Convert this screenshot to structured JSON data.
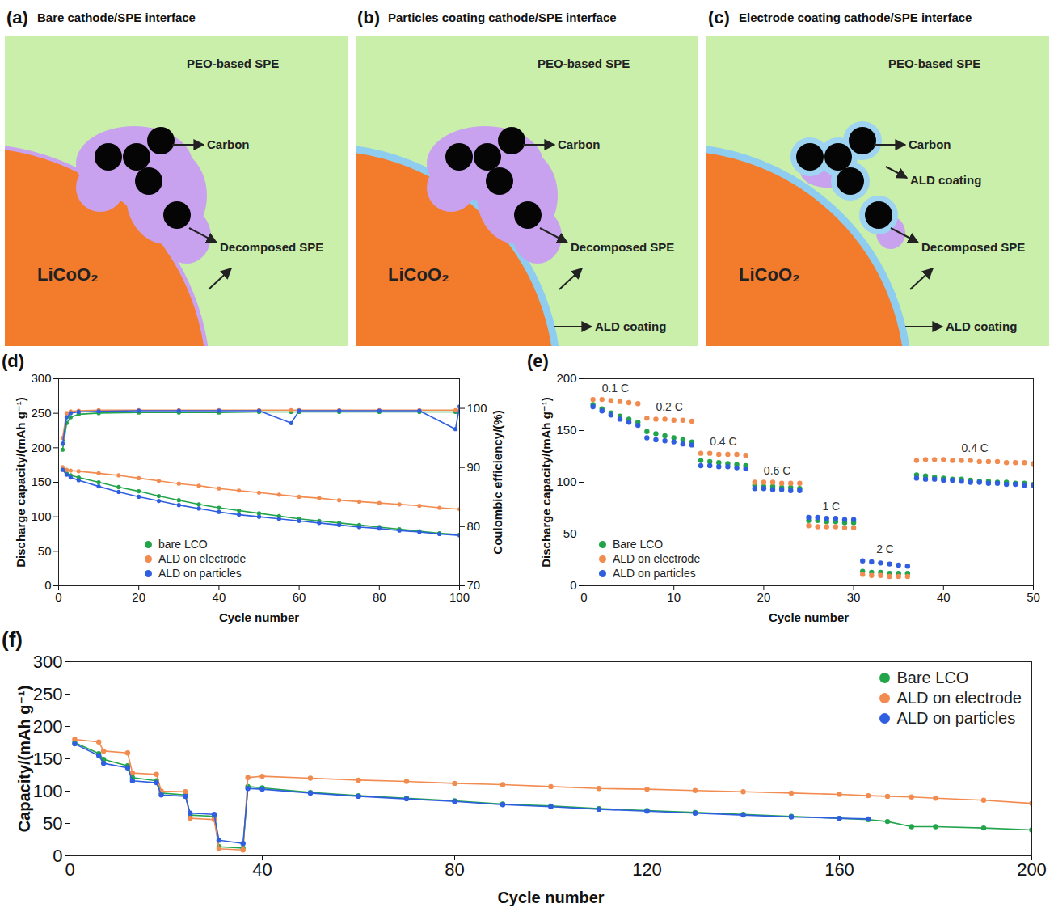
{
  "diagrams": [
    {
      "panel_label": "(a)",
      "title": "Bare cathode/SPE interface",
      "labels": {
        "matrix": "PEO-based SPE",
        "carbon": "Carbon",
        "decomposed": "Decomposed SPE",
        "particle": "LiCoO₂"
      }
    },
    {
      "panel_label": "(b)",
      "title": "Particles coating cathode/SPE interface",
      "labels": {
        "matrix": "PEO-based SPE",
        "carbon": "Carbon",
        "decomposed": "Decomposed SPE",
        "particle": "LiCoO₂",
        "particle_coating": "ALD coating"
      }
    },
    {
      "panel_label": "(c)",
      "title": "Electrode coating cathode/SPE interface",
      "labels": {
        "matrix": "PEO-based SPE",
        "carbon": "Carbon",
        "carbon_coating": "ALD coating",
        "decomposed": "Decomposed SPE",
        "particle": "LiCoO₂",
        "particle_coating": "ALD coating"
      }
    }
  ],
  "chart_data": [
    {
      "panel_label": "(d)",
      "type": "line",
      "marker": "circle",
      "x_label": "Cycle number",
      "y_label": "Discharge capacity/(mAh g⁻¹)",
      "y2_label": "Coulombic efficiency/(%)",
      "x": [
        1,
        2,
        3,
        5,
        10,
        15,
        20,
        25,
        30,
        35,
        40,
        45,
        50,
        55,
        60,
        65,
        70,
        75,
        80,
        85,
        90,
        95,
        100
      ],
      "series": [
        {
          "name": "bare LCO",
          "color": "#22a54a",
          "values": [
            170,
            163,
            160,
            157,
            150,
            143,
            137,
            130,
            124,
            118,
            113,
            109,
            105,
            101,
            97,
            94,
            91,
            88,
            85,
            82,
            79,
            76,
            74
          ]
        },
        {
          "name": "ALD on electrode",
          "color": "#f28b50",
          "values": [
            172,
            168,
            167,
            166,
            163,
            160,
            156,
            152,
            148,
            145,
            141,
            138,
            135,
            132,
            129,
            127,
            124,
            122,
            120,
            118,
            116,
            113,
            111
          ]
        },
        {
          "name": "ALD on particles",
          "color": "#2f5fe0",
          "values": [
            168,
            161,
            157,
            153,
            144,
            136,
            129,
            123,
            117,
            112,
            107,
            103,
            100,
            97,
            94,
            91,
            88,
            85,
            83,
            80,
            78,
            75,
            73
          ]
        },
        {
          "axis": "y2",
          "color": "#22a54a",
          "x": [
            1,
            2,
            3,
            5,
            10,
            20,
            30,
            40,
            50,
            58,
            60,
            70,
            80,
            90,
            99,
            100
          ],
          "values": [
            93,
            97.5,
            98.5,
            99,
            99.2,
            99.3,
            99.3,
            99.3,
            99.4,
            99.4,
            99.4,
            99.4,
            99.4,
            99.4,
            99.4,
            99.4
          ]
        },
        {
          "axis": "y2",
          "color": "#f28b50",
          "x": [
            1,
            2,
            3,
            5,
            10,
            20,
            30,
            40,
            50,
            58,
            60,
            70,
            80,
            90,
            99,
            100
          ],
          "values": [
            95,
            99.2,
            99.5,
            99.6,
            99.7,
            99.7,
            99.7,
            99.7,
            99.7,
            99.7,
            99.7,
            99.7,
            99.7,
            99.7,
            99.7,
            99.7
          ]
        },
        {
          "axis": "y2",
          "color": "#2f5fe0",
          "x": [
            1,
            2,
            3,
            5,
            10,
            20,
            30,
            40,
            50,
            58,
            60,
            70,
            80,
            90,
            99,
            100
          ],
          "values": [
            94,
            98.5,
            99.2,
            99.4,
            99.5,
            99.6,
            99.6,
            99.6,
            99.6,
            97.5,
            99.6,
            99.6,
            99.6,
            99.6,
            96.5,
            100.3
          ]
        }
      ],
      "xlim": [
        0,
        100
      ],
      "xticks": [
        0,
        20,
        40,
        60,
        80,
        100
      ],
      "ylim": [
        0,
        300
      ],
      "yticks": [
        0,
        50,
        100,
        150,
        200,
        250,
        300
      ],
      "y2lim": [
        70,
        105
      ],
      "y2ticks": [
        70,
        80,
        90,
        100
      ],
      "legend": "lower left"
    },
    {
      "panel_label": "(e)",
      "type": "scatter",
      "marker": "circle",
      "x_label": "Cycle number",
      "y_label": "Discharge capacity/(mAh g⁻¹)",
      "x": [
        1,
        2,
        3,
        4,
        5,
        6,
        7,
        8,
        9,
        10,
        11,
        12,
        13,
        14,
        15,
        16,
        17,
        18,
        19,
        20,
        21,
        22,
        23,
        24,
        25,
        26,
        27,
        28,
        29,
        30,
        31,
        32,
        33,
        34,
        35,
        36,
        37,
        38,
        39,
        40,
        41,
        42,
        43,
        44,
        45,
        46,
        47,
        48,
        49,
        50
      ],
      "series": [
        {
          "name": "Bare LCO",
          "color": "#22a54a",
          "values": [
            175,
            171,
            167,
            164,
            161,
            158,
            149,
            147,
            145,
            143,
            141,
            139,
            121,
            120,
            119,
            118,
            117,
            116,
            97,
            96,
            96,
            95,
            95,
            94,
            63,
            63,
            62,
            62,
            61,
            61,
            14,
            13,
            13,
            12,
            12,
            12,
            107,
            106,
            105,
            104,
            103,
            103,
            102,
            101,
            101,
            100,
            100,
            99,
            99,
            98
          ]
        },
        {
          "name": "ALD on electrode",
          "color": "#f28b50",
          "values": [
            180,
            180,
            179,
            178,
            177,
            176,
            162,
            161,
            161,
            160,
            160,
            159,
            128,
            128,
            127,
            127,
            127,
            126,
            100,
            100,
            100,
            99,
            99,
            99,
            58,
            57,
            57,
            57,
            56,
            56,
            11,
            10,
            10,
            9,
            9,
            9,
            121,
            122,
            122,
            122,
            121,
            121,
            121,
            120,
            120,
            120,
            119,
            119,
            119,
            118
          ]
        },
        {
          "name": "ALD on particles",
          "color": "#2f5fe0",
          "values": [
            173,
            169,
            165,
            161,
            158,
            155,
            143,
            141,
            140,
            139,
            137,
            136,
            116,
            116,
            115,
            115,
            114,
            113,
            94,
            94,
            93,
            93,
            92,
            92,
            66,
            66,
            65,
            65,
            64,
            64,
            24,
            23,
            22,
            21,
            20,
            19,
            104,
            103,
            103,
            102,
            102,
            101,
            100,
            100,
            99,
            99,
            98,
            98,
            97,
            97
          ]
        }
      ],
      "annotations": [
        {
          "text": "0.1 C",
          "x_range": [
            1,
            6
          ]
        },
        {
          "text": "0.2 C",
          "x_range": [
            7,
            12
          ]
        },
        {
          "text": "0.4 C",
          "x_range": [
            13,
            18
          ]
        },
        {
          "text": "0.6 C",
          "x_range": [
            19,
            24
          ]
        },
        {
          "text": "1 C",
          "x_range": [
            25,
            30
          ]
        },
        {
          "text": "2 C",
          "x_range": [
            31,
            36
          ]
        },
        {
          "text": "0.4 C",
          "x_range": [
            37,
            50
          ]
        }
      ],
      "xlim": [
        0,
        50
      ],
      "xticks": [
        0,
        10,
        20,
        30,
        40,
        50
      ],
      "ylim": [
        0,
        200
      ],
      "yticks": [
        0,
        50,
        100,
        150,
        200
      ],
      "legend": "lower left"
    },
    {
      "panel_label": "(f)",
      "type": "line",
      "marker": "circle",
      "x_label": "Cycle number",
      "y_label": "Capacity/(mAh g⁻¹)",
      "x": [
        1,
        6,
        7,
        12,
        13,
        18,
        19,
        24,
        25,
        30,
        31,
        36,
        37,
        40,
        50,
        60,
        70,
        80,
        90,
        100,
        110,
        120,
        130,
        140,
        150,
        160,
        166,
        170,
        175,
        180,
        190,
        200
      ],
      "series": [
        {
          "name": "Bare LCO",
          "color": "#22a54a",
          "values": [
            175,
            158,
            149,
            139,
            121,
            116,
            97,
            94,
            63,
            61,
            14,
            12,
            107,
            105,
            98,
            93,
            89,
            85,
            80,
            77,
            73,
            70,
            67,
            64,
            61,
            58,
            56,
            53,
            45,
            45,
            43,
            40
          ]
        },
        {
          "name": "ALD on electrode",
          "color": "#f28b50",
          "values": [
            180,
            176,
            162,
            159,
            128,
            126,
            100,
            99,
            58,
            56,
            11,
            9,
            121,
            123,
            120,
            117,
            115,
            112,
            110,
            107,
            104,
            103,
            101,
            99,
            97,
            95,
            93,
            92,
            91,
            89,
            86,
            81
          ]
        },
        {
          "name": "ALD on particles",
          "color": "#2f5fe0",
          "values": [
            173,
            155,
            143,
            136,
            116,
            113,
            94,
            92,
            66,
            64,
            24,
            19,
            104,
            103,
            97,
            92,
            88,
            84,
            79,
            76,
            72,
            69,
            66,
            63,
            60,
            58,
            57,
            null,
            null,
            null,
            null,
            null
          ]
        }
      ],
      "xlim": [
        0,
        200
      ],
      "xticks": [
        0,
        40,
        80,
        120,
        160,
        200
      ],
      "ylim": [
        0,
        300
      ],
      "yticks": [
        0,
        50,
        100,
        150,
        200,
        250,
        300
      ],
      "legend": "upper right"
    }
  ]
}
